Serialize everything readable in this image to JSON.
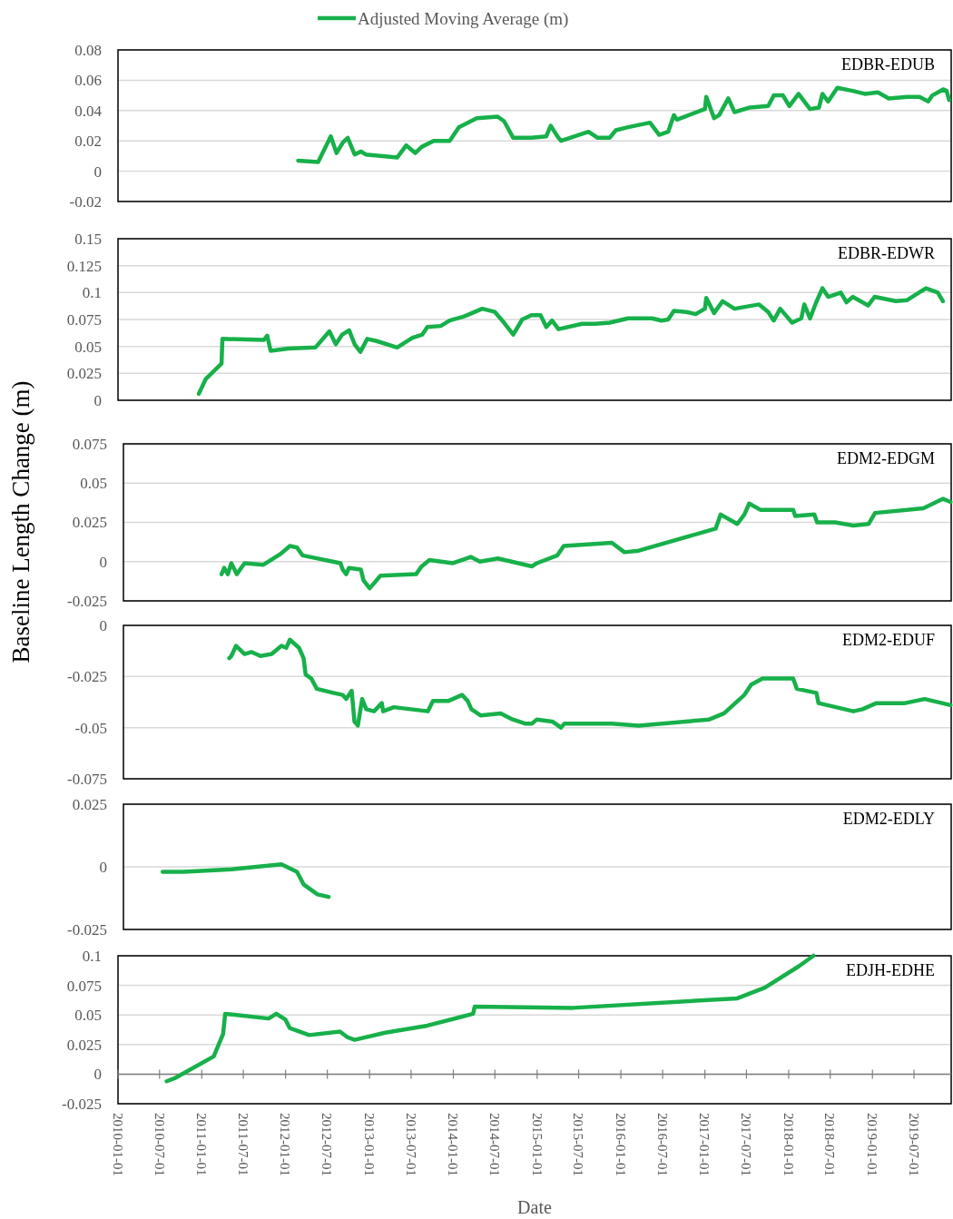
{
  "chart_data": [
    {
      "type": "line",
      "title": "EDBR-EDUB",
      "legend": "top",
      "grid": "y",
      "tick_labels": "y",
      "xlim": [
        "2010-01-01",
        "2019-12-10"
      ],
      "ylim": [
        -0.02,
        0.08
      ],
      "yticks": [
        -0.02,
        0,
        0.02,
        0.04,
        0.06,
        0.08
      ],
      "series": [
        {
          "name": "Adjusted Moving Average (m)",
          "color": "#17b04a",
          "x": [
            "2012-02-25",
            "2012-05-22",
            "2012-07-16",
            "2012-08-10",
            "2012-09-07",
            "2012-09-28",
            "2012-10-28",
            "2012-11-25",
            "2012-12-15",
            "2013-05-01",
            "2013-06-10",
            "2013-07-19",
            "2013-08-16",
            "2013-10-07",
            "2013-12-16",
            "2014-01-25",
            "2014-04-13",
            "2014-07-13",
            "2014-08-10",
            "2014-09-19",
            "2014-12-07",
            "2015-02-10",
            "2015-03-01",
            "2015-04-04",
            "2015-04-16",
            "2015-08-13",
            "2015-09-22",
            "2015-11-13",
            "2015-12-10",
            "2016-02-01",
            "2016-05-07",
            "2016-06-16",
            "2016-07-25",
            "2016-08-19",
            "2016-09-01",
            "2017-01-01",
            "2017-01-07",
            "2017-02-10",
            "2017-03-04",
            "2017-04-13",
            "2017-05-10",
            "2017-07-16",
            "2017-10-04",
            "2017-10-28",
            "2017-12-07",
            "2018-01-04",
            "2018-02-13",
            "2018-04-04",
            "2018-05-13",
            "2018-05-28",
            "2018-06-22",
            "2018-08-01",
            "2018-10-07",
            "2018-11-28",
            "2019-01-25",
            "2019-03-13",
            "2019-06-01",
            "2019-07-25",
            "2019-09-01",
            "2019-09-19",
            "2019-11-05",
            "2019-11-20",
            "2019-12-01"
          ],
          "values": [
            0.007,
            0.006,
            0.023,
            0.012,
            0.019,
            0.022,
            0.011,
            0.013,
            0.011,
            0.009,
            0.017,
            0.012,
            0.016,
            0.02,
            0.02,
            0.029,
            0.035,
            0.036,
            0.033,
            0.022,
            0.022,
            0.023,
            0.03,
            0.022,
            0.02,
            0.026,
            0.022,
            0.022,
            0.027,
            0.029,
            0.032,
            0.024,
            0.026,
            0.037,
            0.034,
            0.041,
            0.049,
            0.035,
            0.037,
            0.048,
            0.039,
            0.042,
            0.043,
            0.05,
            0.05,
            0.043,
            0.051,
            0.041,
            0.042,
            0.051,
            0.046,
            0.055,
            0.053,
            0.051,
            0.052,
            0.048,
            0.049,
            0.049,
            0.046,
            0.05,
            0.054,
            0.053,
            0.047
          ]
        }
      ]
    },
    {
      "type": "line",
      "title": "EDBR-EDWR",
      "grid": "y",
      "tick_labels": "y",
      "xlim": [
        "2010-01-01",
        "2019-12-10"
      ],
      "ylim": [
        0,
        0.15
      ],
      "yticks": [
        0,
        0.025,
        0.05,
        0.075,
        0.1,
        0.125,
        0.15
      ],
      "series": [
        {
          "color": "#17b04a",
          "x": [
            "2010-12-19",
            "2011-01-19",
            "2011-03-28",
            "2011-04-01",
            "2011-09-28",
            "2011-10-13",
            "2011-10-28",
            "2012-01-13",
            "2012-05-10",
            "2012-07-10",
            "2012-08-07",
            "2012-09-04",
            "2012-10-04",
            "2012-10-28",
            "2012-11-22",
            "2012-12-22",
            "2013-02-01",
            "2013-05-01",
            "2013-07-07",
            "2013-08-19",
            "2013-09-10",
            "2013-11-07",
            "2013-12-16",
            "2014-02-19",
            "2014-05-07",
            "2014-07-01",
            "2014-08-10",
            "2014-09-19",
            "2014-10-28",
            "2014-12-07",
            "2015-01-16",
            "2015-02-10",
            "2015-03-07",
            "2015-04-04",
            "2015-07-16",
            "2015-09-10",
            "2015-11-13",
            "2016-02-01",
            "2016-04-07",
            "2016-05-16",
            "2016-06-25",
            "2016-07-25",
            "2016-08-19",
            "2016-10-13",
            "2016-11-22",
            "2017-01-01",
            "2017-01-07",
            "2017-02-10",
            "2017-03-19",
            "2017-05-10",
            "2017-08-25",
            "2017-10-04",
            "2017-10-28",
            "2017-11-25",
            "2018-01-16",
            "2018-02-25",
            "2018-03-10",
            "2018-04-04",
            "2018-05-01",
            "2018-05-28",
            "2018-06-22",
            "2018-08-16",
            "2018-09-10",
            "2018-10-07",
            "2018-12-13",
            "2019-01-10",
            "2019-04-13",
            "2019-06-01",
            "2019-08-22",
            "2019-10-13",
            "2019-11-04"
          ],
          "values": [
            0.006,
            0.02,
            0.034,
            0.057,
            0.056,
            0.06,
            0.046,
            0.048,
            0.049,
            0.064,
            0.052,
            0.061,
            0.065,
            0.052,
            0.045,
            0.057,
            0.055,
            0.049,
            0.058,
            0.061,
            0.068,
            0.069,
            0.074,
            0.078,
            0.085,
            0.082,
            0.072,
            0.061,
            0.075,
            0.079,
            0.079,
            0.068,
            0.074,
            0.066,
            0.071,
            0.071,
            0.072,
            0.076,
            0.076,
            0.076,
            0.074,
            0.075,
            0.083,
            0.082,
            0.08,
            0.085,
            0.095,
            0.081,
            0.092,
            0.085,
            0.089,
            0.082,
            0.074,
            0.085,
            0.072,
            0.076,
            0.089,
            0.076,
            0.091,
            0.104,
            0.096,
            0.1,
            0.091,
            0.096,
            0.088,
            0.096,
            0.092,
            0.093,
            0.104,
            0.1,
            0.092
          ]
        }
      ]
    },
    {
      "type": "line",
      "title": "EDM2-EDGM",
      "ylabel": "Baseline Length Change (m)",
      "grid": "y",
      "tick_labels": "y",
      "xlim": [
        "2010-01-01",
        "2019-12-10"
      ],
      "ylim": [
        -0.025,
        0.075
      ],
      "yticks": [
        -0.025,
        0,
        0.025,
        0.05,
        0.075
      ],
      "series": [
        {
          "color": "#17b04a",
          "x": [
            "2011-03-07",
            "2011-03-19",
            "2011-04-04",
            "2011-04-19",
            "2011-05-13",
            "2011-06-16",
            "2011-09-07",
            "2011-11-22",
            "2012-01-01",
            "2012-02-01",
            "2012-02-25",
            "2012-08-10",
            "2012-08-19",
            "2012-09-04",
            "2012-09-16",
            "2012-11-07",
            "2012-11-19",
            "2012-12-16",
            "2013-02-01",
            "2013-07-07",
            "2013-08-01",
            "2013-09-04",
            "2013-12-16",
            "2014-03-04",
            "2014-04-13",
            "2014-07-01",
            "2014-11-28",
            "2014-12-19",
            "2015-03-19",
            "2015-04-16",
            "2015-11-13",
            "2016-01-07",
            "2016-03-10",
            "2017-02-10",
            "2017-03-04",
            "2017-05-16",
            "2017-06-16",
            "2017-07-07",
            "2017-08-25",
            "2018-01-16",
            "2018-01-25",
            "2018-04-19",
            "2018-05-01",
            "2018-07-19",
            "2018-10-07",
            "2018-12-13",
            "2019-01-10",
            "2019-08-10",
            "2019-11-04",
            "2019-12-07"
          ],
          "values": [
            -0.008,
            -0.004,
            -0.008,
            -0.001,
            -0.008,
            -0.001,
            -0.002,
            0.005,
            0.01,
            0.009,
            0.004,
            -0.001,
            -0.005,
            -0.008,
            -0.004,
            -0.005,
            -0.012,
            -0.017,
            -0.009,
            -0.008,
            -0.003,
            0.001,
            -0.001,
            0.003,
            0.0,
            0.002,
            -0.003,
            -0.001,
            0.004,
            0.01,
            0.012,
            0.006,
            0.007,
            0.021,
            0.03,
            0.024,
            0.03,
            0.037,
            0.033,
            0.033,
            0.029,
            0.03,
            0.025,
            0.025,
            0.023,
            0.024,
            0.031,
            0.034,
            0.04,
            0.038
          ]
        }
      ]
    },
    {
      "type": "line",
      "title": "EDM2-EDUF",
      "grid": "y",
      "tick_labels": "y",
      "xlim": [
        "2010-01-01",
        "2019-12-10"
      ],
      "ylim": [
        -0.075,
        0
      ],
      "yticks": [
        -0.075,
        -0.05,
        -0.025,
        0
      ],
      "series": [
        {
          "color": "#17b04a",
          "x": [
            "2011-04-10",
            "2011-04-19",
            "2011-05-10",
            "2011-06-16",
            "2011-07-16",
            "2011-08-25",
            "2011-10-13",
            "2011-11-25",
            "2011-12-16",
            "2012-01-01",
            "2012-02-10",
            "2012-03-01",
            "2012-03-10",
            "2012-04-04",
            "2012-04-28",
            "2012-07-10",
            "2012-08-19",
            "2012-09-04",
            "2012-09-28",
            "2012-10-10",
            "2012-10-25",
            "2012-11-13",
            "2012-12-01",
            "2013-01-04",
            "2013-02-07",
            "2013-02-13",
            "2013-04-01",
            "2013-08-28",
            "2013-09-19",
            "2013-11-25",
            "2014-01-25",
            "2014-02-19",
            "2014-03-07",
            "2014-04-16",
            "2014-07-13",
            "2014-09-04",
            "2014-10-28",
            "2014-11-28",
            "2014-12-19",
            "2015-02-25",
            "2015-04-04",
            "2015-04-19",
            "2015-11-13",
            "2016-03-10",
            "2017-01-13",
            "2017-03-19",
            "2017-06-16",
            "2017-07-16",
            "2017-09-04",
            "2018-01-16",
            "2018-02-01",
            "2018-04-28",
            "2018-05-07",
            "2018-10-07",
            "2018-11-16",
            "2019-01-16",
            "2019-05-22",
            "2019-08-16",
            "2019-12-07"
          ],
          "values": [
            -0.016,
            -0.015,
            -0.01,
            -0.014,
            -0.013,
            -0.015,
            -0.014,
            -0.01,
            -0.011,
            -0.007,
            -0.011,
            -0.016,
            -0.024,
            -0.026,
            -0.031,
            -0.033,
            -0.034,
            -0.036,
            -0.032,
            -0.047,
            -0.049,
            -0.036,
            -0.041,
            -0.042,
            -0.038,
            -0.042,
            -0.04,
            -0.042,
            -0.037,
            -0.037,
            -0.034,
            -0.037,
            -0.041,
            -0.044,
            -0.043,
            -0.046,
            -0.048,
            -0.048,
            -0.046,
            -0.047,
            -0.05,
            -0.048,
            -0.048,
            -0.049,
            -0.046,
            -0.043,
            -0.034,
            -0.029,
            -0.026,
            -0.026,
            -0.031,
            -0.033,
            -0.038,
            -0.042,
            -0.041,
            -0.038,
            -0.038,
            -0.036,
            -0.039
          ]
        }
      ]
    },
    {
      "type": "line",
      "title": "EDM2-EDLY",
      "grid": "y",
      "tick_labels": "y",
      "xlim": [
        "2010-01-01",
        "2019-12-10"
      ],
      "ylim": [
        -0.025,
        0.025
      ],
      "yticks": [
        -0.025,
        0,
        0.025
      ],
      "series": [
        {
          "color": "#17b04a",
          "x": [
            "2010-06-22",
            "2010-09-22",
            "2011-04-19",
            "2011-11-25",
            "2012-02-01",
            "2012-03-01",
            "2012-05-01",
            "2012-06-19"
          ],
          "values": [
            -0.002,
            -0.002,
            -0.001,
            0.001,
            -0.002,
            -0.007,
            -0.011,
            -0.012
          ]
        }
      ]
    },
    {
      "type": "line",
      "title": "EDJH-EDHE",
      "xlabel": "Date",
      "grid": "y",
      "xlim": [
        "2010-01-01",
        "2019-12-10"
      ],
      "ylim": [
        -0.025,
        0.1
      ],
      "yticks": [
        -0.025,
        0,
        0.025,
        0.05,
        0.075,
        0.1
      ],
      "xticks": [
        "2010-01-01",
        "2010-07-01",
        "2011-01-01",
        "2011-07-01",
        "2012-01-01",
        "2012-07-01",
        "2013-01-01",
        "2013-07-01",
        "2014-01-01",
        "2014-07-01",
        "2015-01-01",
        "2015-07-01",
        "2016-01-01",
        "2016-07-01",
        "2017-01-01",
        "2017-07-01",
        "2018-01-01",
        "2018-07-01",
        "2019-01-01",
        "2019-07-01"
      ],
      "series": [
        {
          "color": "#17b04a",
          "x": [
            "2010-08-01",
            "2010-09-10",
            "2011-02-22",
            "2011-04-04",
            "2011-04-13",
            "2011-10-19",
            "2011-11-22",
            "2012-01-01",
            "2012-01-19",
            "2012-04-13",
            "2012-08-25",
            "2012-09-28",
            "2012-10-28",
            "2013-03-10",
            "2013-09-10",
            "2014-03-28",
            "2014-04-04",
            "2015-06-07",
            "2017-05-22",
            "2017-09-19",
            "2018-02-13",
            "2018-04-19"
          ],
          "values": [
            -0.006,
            -0.003,
            0.015,
            0.034,
            0.051,
            0.047,
            0.051,
            0.046,
            0.039,
            0.033,
            0.036,
            0.031,
            0.029,
            0.035,
            0.041,
            0.051,
            0.057,
            0.056,
            0.064,
            0.073,
            0.091,
            0.1
          ]
        }
      ]
    }
  ]
}
